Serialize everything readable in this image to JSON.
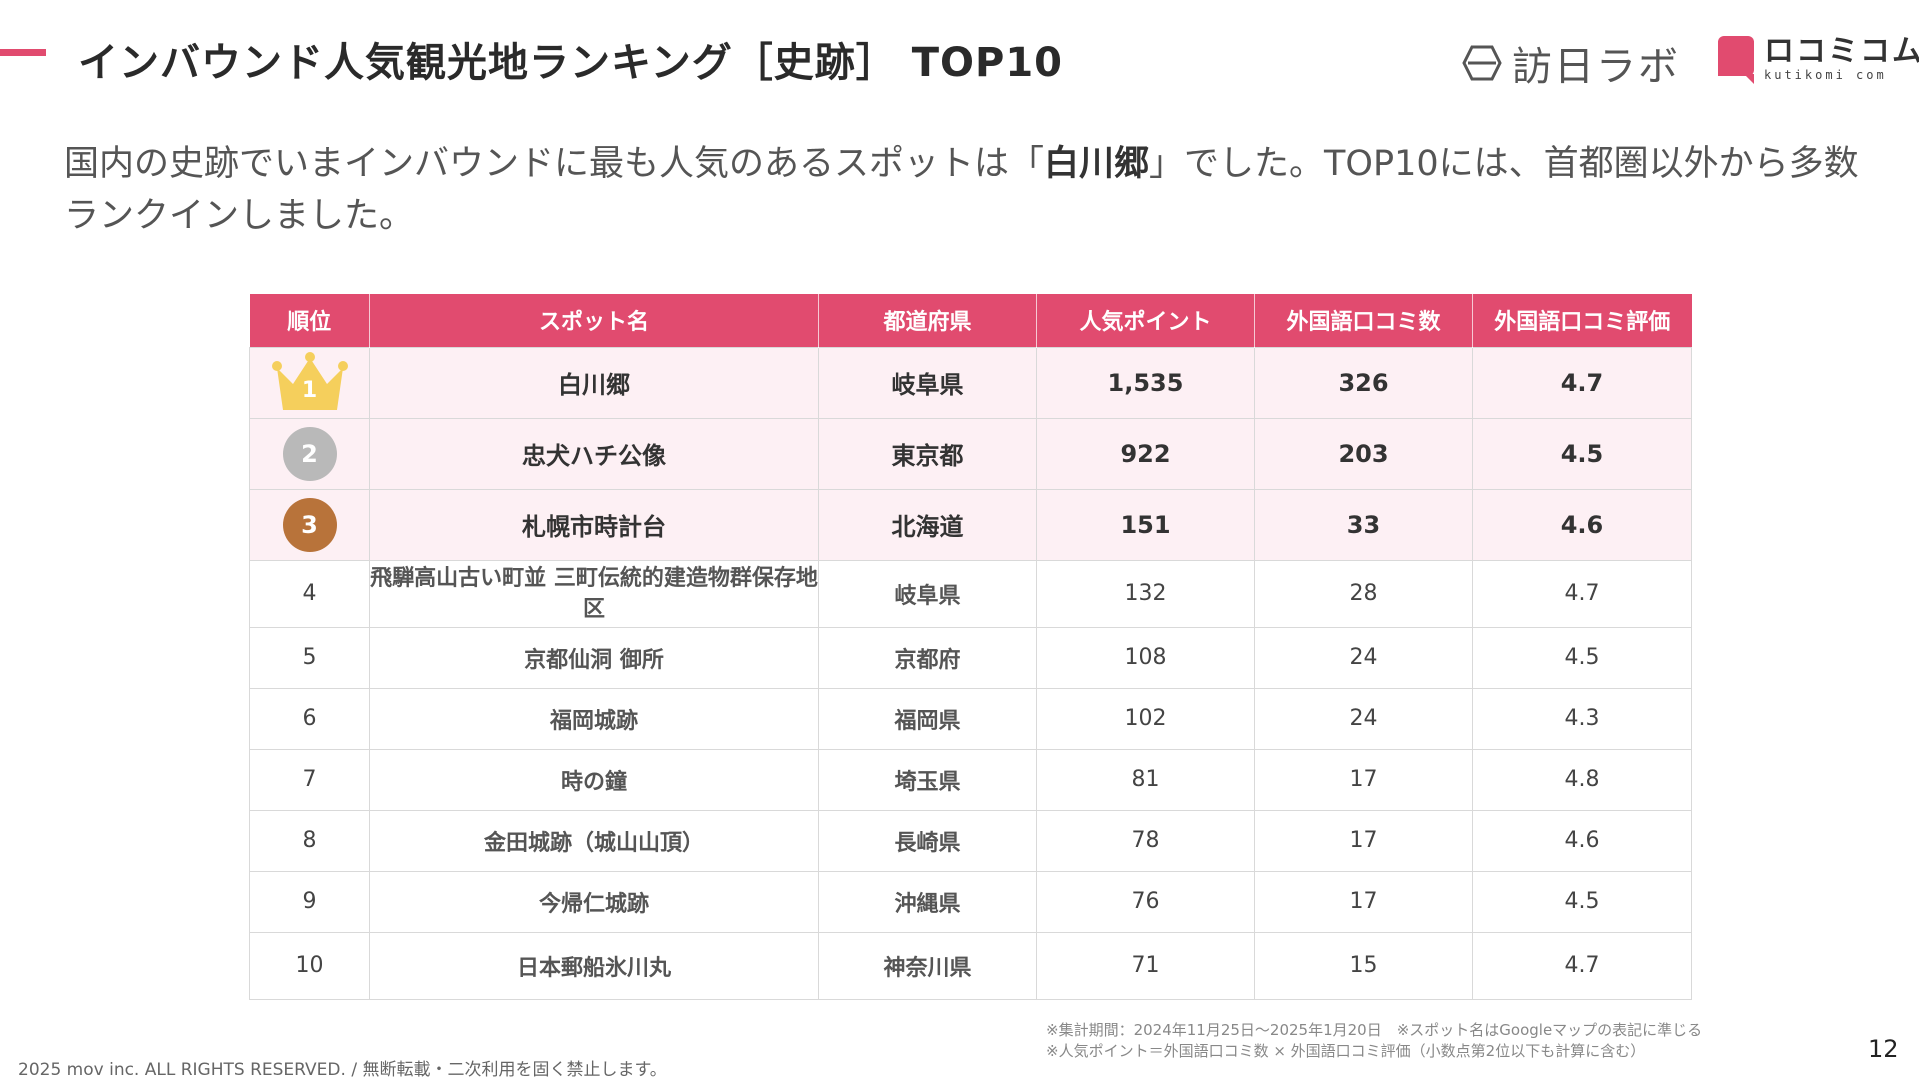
{
  "title": "インバウンド人気観光地ランキング［史跡］ TOP10",
  "logos": {
    "hounichi": "訪日ラボ",
    "kuchikomi_main": "ロコミコム",
    "kuchikomi_sub": "kutikomi com"
  },
  "lead": {
    "before": "国内の史跡でいまインバウンドに最も人気のあるスポットは「",
    "highlight": "白川郷",
    "after": "」でした。TOP10には、首都圏以外から多数ランクインしました。"
  },
  "table": {
    "headers": [
      "順位",
      "スポット名",
      "都道府県",
      "人気ポイント",
      "外国語口コミ数",
      "外国語口コミ評価"
    ],
    "rows": [
      {
        "rank": "1",
        "name": "白川郷",
        "pref": "岐阜県",
        "points": "1,535",
        "reviews": "326",
        "rating": "4.7"
      },
      {
        "rank": "2",
        "name": "忠犬ハチ公像",
        "pref": "東京都",
        "points": "922",
        "reviews": "203",
        "rating": "4.5"
      },
      {
        "rank": "3",
        "name": "札幌市時計台",
        "pref": "北海道",
        "points": "151",
        "reviews": "33",
        "rating": "4.6"
      },
      {
        "rank": "4",
        "name": "飛騨高山古い町並 三町伝統的建造物群保存地区",
        "pref": "岐阜県",
        "points": "132",
        "reviews": "28",
        "rating": "4.7"
      },
      {
        "rank": "5",
        "name": "京都仙洞 御所",
        "pref": "京都府",
        "points": "108",
        "reviews": "24",
        "rating": "4.5"
      },
      {
        "rank": "6",
        "name": "福岡城跡",
        "pref": "福岡県",
        "points": "102",
        "reviews": "24",
        "rating": "4.3"
      },
      {
        "rank": "7",
        "name": "時の鐘",
        "pref": "埼玉県",
        "points": "81",
        "reviews": "17",
        "rating": "4.8"
      },
      {
        "rank": "8",
        "name": "金田城跡（城山山頂）",
        "pref": "長崎県",
        "points": "78",
        "reviews": "17",
        "rating": "4.6"
      },
      {
        "rank": "9",
        "name": "今帰仁城跡",
        "pref": "沖縄県",
        "points": "76",
        "reviews": "17",
        "rating": "4.5"
      },
      {
        "rank": "10",
        "name": "日本郵船氷川丸",
        "pref": "神奈川県",
        "points": "71",
        "reviews": "15",
        "rating": "4.7"
      }
    ]
  },
  "notes": [
    "※集計期間：2024年11月25日〜2025年1月20日　※スポット名はGoogleマップの表記に準じる",
    "※人気ポイント＝外国語口コミ数 × 外国語口コミ評価（小数点第2位以下も計算に含む）"
  ],
  "copyright": "2025 mov inc. ALL RIGHTS RESERVED. / 無断転載・二次利用を固く禁止します。",
  "page_number": "12",
  "colors": {
    "accent": "#e14b6f",
    "top_row_bg": "#fdf0f4",
    "gold": "#f5cf5c",
    "silver": "#b9b9b9",
    "bronze": "#b8733a"
  }
}
